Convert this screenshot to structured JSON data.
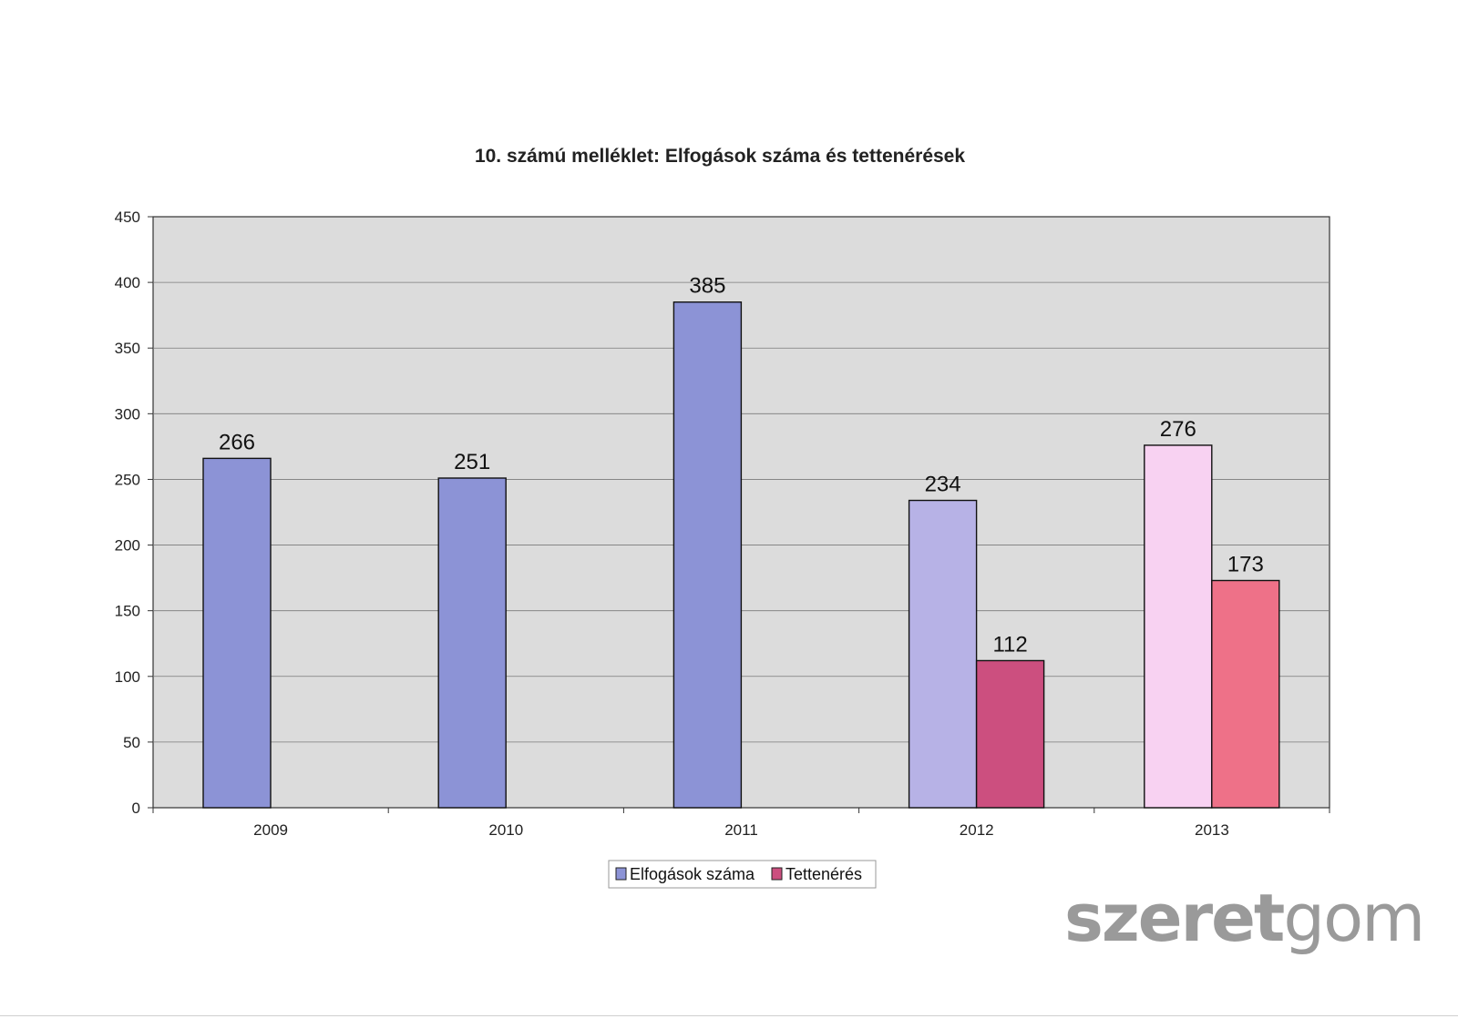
{
  "chart_data": {
    "type": "bar",
    "title": "10. számú melléklet: Elfogások száma és tettenérések",
    "categories": [
      "2009",
      "2010",
      "2011",
      "2012",
      "2013"
    ],
    "series": [
      {
        "name": "Elfogások száma",
        "values": [
          266,
          251,
          385,
          234,
          276
        ]
      },
      {
        "name": "Tettenérés",
        "values": [
          null,
          null,
          null,
          112,
          173
        ]
      }
    ],
    "bar_colors": [
      [
        "#8c93d6",
        null
      ],
      [
        "#8c93d6",
        null
      ],
      [
        "#8c93d6",
        null
      ],
      [
        "#b7b2e6",
        "#cc4f7f"
      ],
      [
        "#f8d2f2",
        "#ee7188"
      ]
    ],
    "legend_colors": [
      "#8c93d6",
      "#cc4f7f"
    ],
    "plot_background": "#dcdcdc",
    "yticks": [
      0,
      50,
      100,
      150,
      200,
      250,
      300,
      350,
      400,
      450
    ],
    "ylim": [
      0,
      450
    ],
    "grid": true,
    "legend_position": "bottom-center",
    "xlabel": "",
    "ylabel": ""
  },
  "watermark": {
    "part1": "szeret",
    "part2": "gom"
  }
}
